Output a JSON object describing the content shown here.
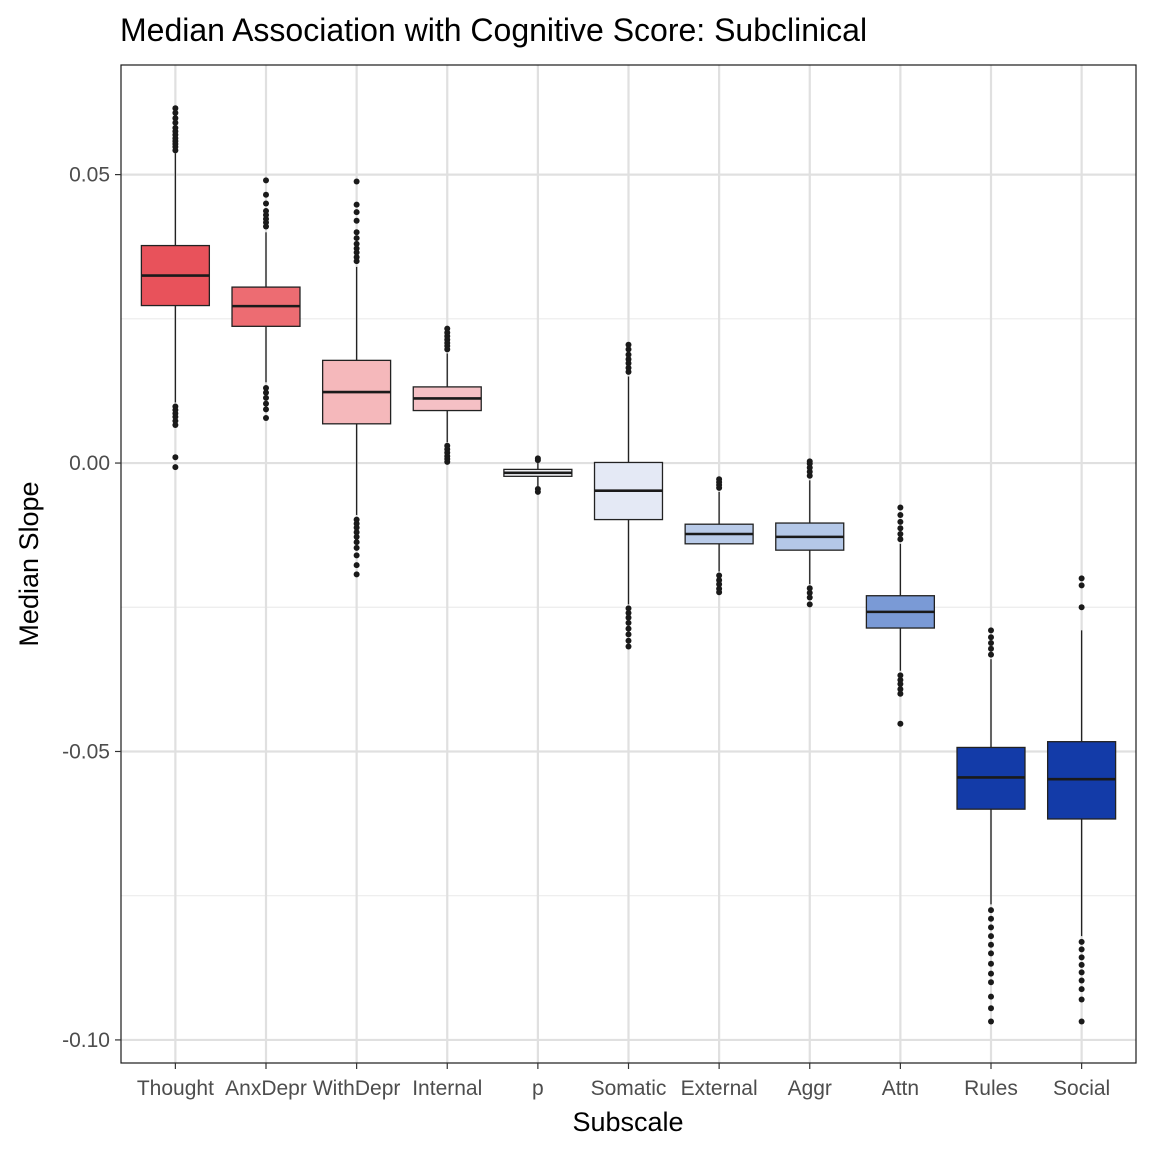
{
  "chart_data": {
    "type": "boxplot",
    "title": "Median Association with Cognitive Score: Subclinical",
    "xlabel": "Subscale",
    "ylabel": "Median Slope",
    "ylim": [
      -0.104,
      0.069
    ],
    "yticks": [
      0.05,
      0.0,
      -0.05,
      -0.1
    ],
    "ytick_labels": [
      "0.05",
      "0.00",
      "-0.05",
      "-0.10"
    ],
    "grid": true,
    "categories": [
      "Thought",
      "AnxDepr",
      "WithDepr",
      "Internal",
      "p",
      "Somatic",
      "External",
      "Aggr",
      "Attn",
      "Rules",
      "Social"
    ],
    "boxes": [
      {
        "category": "Thought",
        "whisker_low": 0.0105,
        "q1": 0.0273,
        "median": 0.0325,
        "q3": 0.0377,
        "whisker_high": 0.0537,
        "fill": "#e8525b",
        "outliers": [
          0.0542,
          0.0548,
          0.0553,
          0.0558,
          0.0563,
          0.0569,
          0.0575,
          0.0581,
          0.059,
          0.0598,
          0.0607,
          0.0615,
          0.0098,
          0.0092,
          0.0086,
          0.008,
          0.0073,
          0.0066,
          0.001,
          -0.0007
        ]
      },
      {
        "category": "AnxDepr",
        "whisker_low": 0.014,
        "q1": 0.0237,
        "median": 0.0272,
        "q3": 0.0305,
        "whisker_high": 0.04,
        "fill": "#ed6c72",
        "outliers": [
          0.041,
          0.0417,
          0.0423,
          0.043,
          0.0437,
          0.045,
          0.0465,
          0.049,
          0.013,
          0.0122,
          0.0113,
          0.0103,
          0.0093,
          0.0078
        ]
      },
      {
        "category": "WithDepr",
        "whisker_low": -0.009,
        "q1": 0.0068,
        "median": 0.0123,
        "q3": 0.0178,
        "whisker_high": 0.034,
        "fill": "#f5b8bb",
        "outliers": [
          0.035,
          0.0357,
          0.0365,
          0.0372,
          0.038,
          0.039,
          0.04,
          0.042,
          0.0435,
          0.0448,
          0.0488,
          -0.0098,
          -0.0105,
          -0.0112,
          -0.012,
          -0.0128,
          -0.0137,
          -0.0147,
          -0.016,
          -0.0177,
          -0.0193
        ]
      },
      {
        "category": "Internal",
        "whisker_low": 0.0036,
        "q1": 0.0091,
        "median": 0.0112,
        "q3": 0.0132,
        "whisker_high": 0.019,
        "fill": "#f5c0c5",
        "outliers": [
          0.0197,
          0.0203,
          0.0208,
          0.0214,
          0.022,
          0.0226,
          0.0233,
          0.003,
          0.0024,
          0.0018,
          0.0012,
          0.0007,
          0.0002
        ]
      },
      {
        "category": "p",
        "whisker_low": -0.004,
        "q1": -0.0023,
        "median": -0.0017,
        "q3": -0.0011,
        "whisker_high": 0.0003,
        "fill": "#f7f8fc",
        "outliers": [
          0.0005,
          0.0008,
          -0.0045,
          -0.005
        ]
      },
      {
        "category": "Somatic",
        "whisker_low": -0.0245,
        "q1": -0.0098,
        "median": -0.0048,
        "q3": 0.0001,
        "whisker_high": 0.015,
        "fill": "#e4e9f5",
        "outliers": [
          0.0158,
          0.0165,
          0.0173,
          0.018,
          0.0188,
          0.0197,
          0.0205,
          -0.0252,
          -0.026,
          -0.0268,
          -0.0277,
          -0.0287,
          -0.0297,
          -0.0308,
          -0.0318
        ]
      },
      {
        "category": "External",
        "whisker_low": -0.0188,
        "q1": -0.014,
        "median": -0.0123,
        "q3": -0.0106,
        "whisker_high": -0.005,
        "fill": "#b9cbe9",
        "outliers": [
          -0.0043,
          -0.0038,
          -0.0033,
          -0.0028,
          -0.0195,
          -0.0203,
          -0.021,
          -0.0218,
          -0.0224
        ]
      },
      {
        "category": "Aggr",
        "whisker_low": -0.021,
        "q1": -0.0151,
        "median": -0.0128,
        "q3": -0.0104,
        "whisker_high": -0.003,
        "fill": "#b4c8e8",
        "outliers": [
          -0.0022,
          -0.0015,
          -0.0008,
          -0.0001,
          0.0003,
          -0.0217,
          -0.0225,
          -0.0233,
          -0.0245
        ]
      },
      {
        "category": "Attn",
        "whisker_low": -0.036,
        "q1": -0.0286,
        "median": -0.0258,
        "q3": -0.023,
        "whisker_high": -0.014,
        "fill": "#7a9ad6",
        "outliers": [
          -0.0132,
          -0.0123,
          -0.0113,
          -0.0102,
          -0.009,
          -0.0077,
          -0.0368,
          -0.0376,
          -0.0383,
          -0.0392,
          -0.04,
          -0.0452
        ]
      },
      {
        "category": "Rules",
        "whisker_low": -0.0765,
        "q1": -0.06,
        "median": -0.0545,
        "q3": -0.0493,
        "whisker_high": -0.034,
        "fill": "#133ba8",
        "outliers": [
          -0.0332,
          -0.0322,
          -0.0312,
          -0.0302,
          -0.029,
          -0.0775,
          -0.079,
          -0.0805,
          -0.082,
          -0.0835,
          -0.085,
          -0.0868,
          -0.0885,
          -0.09,
          -0.0925,
          -0.0945,
          -0.0968
        ]
      },
      {
        "category": "Social",
        "whisker_low": -0.082,
        "q1": -0.0617,
        "median": -0.0548,
        "q3": -0.0483,
        "whisker_high": -0.029,
        "fill": "#133ba8",
        "outliers": [
          -0.025,
          -0.0212,
          -0.02,
          -0.083,
          -0.0843,
          -0.0857,
          -0.087,
          -0.0883,
          -0.0897,
          -0.0912,
          -0.093,
          -0.0968
        ]
      }
    ]
  }
}
